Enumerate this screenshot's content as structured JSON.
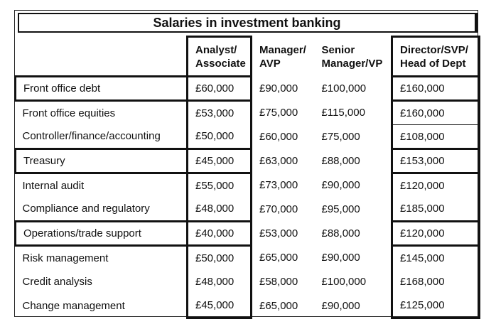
{
  "title": "Salaries in investment banking",
  "columns": [
    "Analyst/\nAssociate",
    "Manager/\nAVP",
    "Senior\nManager/VP",
    "Director/SVP/\nHead of Dept"
  ],
  "column_lines": [
    [
      "Analyst/",
      "Associate"
    ],
    [
      "Manager/",
      "AVP"
    ],
    [
      "Senior",
      "Manager/VP"
    ],
    [
      "Director/SVP/",
      "Head of Dept"
    ]
  ],
  "rows": [
    {
      "role": "Front office debt",
      "values": [
        "£60,000",
        "£90,000",
        "£100,000",
        "£160,000"
      ]
    },
    {
      "role": "Front office equities",
      "values": [
        "£53,000",
        "£75,000",
        "£115,000",
        "£160,000"
      ]
    },
    {
      "role": "Controller/finance/accounting",
      "values": [
        "£50,000",
        "£60,000",
        "£75,000",
        "£108,000"
      ]
    },
    {
      "role": "Treasury",
      "values": [
        "£45,000",
        "£63,000",
        "£88,000",
        "£153,000"
      ]
    },
    {
      "role": "Internal audit",
      "values": [
        "£55,000",
        "£73,000",
        "£90,000",
        "£120,000"
      ]
    },
    {
      "role": "Compliance and regulatory",
      "values": [
        "£48,000",
        "£70,000",
        "£95,000",
        "£185,000"
      ]
    },
    {
      "role": "Operations/trade support",
      "values": [
        "£40,000",
        "£53,000",
        "£88,000",
        "£120,000"
      ]
    },
    {
      "role": "Risk management",
      "values": [
        "£50,000",
        "£65,000",
        "£90,000",
        "£145,000"
      ]
    },
    {
      "role": "Credit analysis",
      "values": [
        "£48,000",
        "£58,000",
        "£100,000",
        "£168,000"
      ]
    },
    {
      "role": "Change management",
      "values": [
        "£45,000",
        "£65,000",
        "£90,000",
        "£125,000"
      ]
    }
  ]
}
